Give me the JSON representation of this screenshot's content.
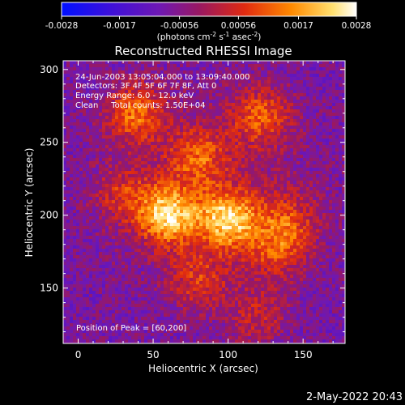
{
  "chart_data": {
    "type": "heatmap",
    "title": "Reconstructed RHESSI Image",
    "xlabel": "Heliocentric X (arcsec)",
    "ylabel": "Heliocentric Y (arcsec)",
    "xlim": [
      -10,
      178
    ],
    "ylim": [
      112,
      306
    ],
    "xticks": [
      0,
      50,
      100,
      150
    ],
    "yticks": [
      150,
      200,
      250,
      300
    ],
    "colorbar": {
      "min": -0.0028,
      "max": 0.0028,
      "ticks": [
        "-0.0028",
        "-0.0017",
        "-0.00056",
        "0.00056",
        "0.0017",
        "0.0028"
      ],
      "units_base": "(photons cm",
      "units_exp1": "-2",
      "units_mid": " s",
      "units_exp2": "-1",
      "units_mid2": " asec",
      "units_exp3": "-2",
      "units_end": ")"
    },
    "annotations": [
      "24-Jun-2003 13:05:04.000 to 13:09:40.000",
      "Detectors: 3F 4F 5F 6F 7F 8F, Att 0",
      "Energy Range: 6.0 - 12.0 keV",
      "Clean     Total counts: 1.50E+04"
    ],
    "peak_label": "Position of Peak = [60,200]",
    "sources": [
      {
        "x": 60,
        "y": 200,
        "intensity": 0.0028
      },
      {
        "x": 100,
        "y": 197,
        "intensity": 0.0027
      },
      {
        "x": 38,
        "y": 270,
        "intensity": 0.0019
      },
      {
        "x": 122,
        "y": 268,
        "intensity": 0.0016
      },
      {
        "x": 140,
        "y": 195,
        "intensity": 0.0013
      },
      {
        "x": 132,
        "y": 175,
        "intensity": 0.0012
      },
      {
        "x": 80,
        "y": 240,
        "intensity": 0.0015
      },
      {
        "x": 30,
        "y": 215,
        "intensity": 0.0011
      },
      {
        "x": 80,
        "y": 155,
        "intensity": 0.0012
      },
      {
        "x": 120,
        "y": 130,
        "intensity": 0.001
      }
    ]
  },
  "footer": {
    "timestamp": "2-May-2022 20:43"
  },
  "colors": {
    "background": "#000000",
    "foreground": "#ffffff"
  }
}
